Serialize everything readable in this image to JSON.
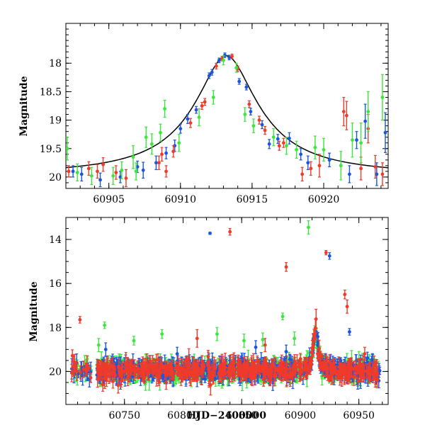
{
  "chart_data": [
    {
      "type": "scatter",
      "id": "zoom",
      "xlabel": "",
      "ylabel": "Magnitude",
      "xlim": [
        60902,
        60924.5
      ],
      "ylim": [
        20.2,
        17.3
      ],
      "xticks": [
        60905,
        60910,
        60915,
        60920
      ],
      "xtick_labels": [
        "60905",
        "60910",
        "60915",
        "60920"
      ],
      "yticks": [
        18,
        18.5,
        19,
        19.5,
        20
      ],
      "ytick_labels": [
        "18",
        "18.5",
        "19",
        "19.5",
        "20"
      ],
      "model_curve": {
        "t0": 60913.2,
        "peak_mag": 17.87,
        "base_mag": 19.97,
        "tau": 1.7
      },
      "series": [
        {
          "name": "blue",
          "color": "#1a56e0",
          "points": [
            [
              60902.5,
              19.9,
              0.1
            ],
            [
              60903.1,
              19.95,
              0.12
            ],
            [
              60904.4,
              20.05,
              0.12
            ],
            [
              60905.8,
              20.0,
              0.1
            ],
            [
              60907.0,
              19.82,
              0.1
            ],
            [
              60907.4,
              19.88,
              0.14
            ],
            [
              60908.3,
              19.75,
              0.12
            ],
            [
              60909.0,
              19.58,
              0.1
            ],
            [
              60909.6,
              19.45,
              0.1
            ],
            [
              60910.0,
              19.15,
              0.08
            ],
            [
              60910.5,
              18.98,
              0.08
            ],
            [
              60911.1,
              18.82,
              0.06
            ],
            [
              60912.0,
              18.22,
              0.05
            ],
            [
              60912.2,
              18.16,
              0.05
            ],
            [
              60912.7,
              17.95,
              0.04
            ],
            [
              60913.1,
              17.86,
              0.04
            ],
            [
              60913.4,
              17.9,
              0.04
            ],
            [
              60914.1,
              18.32,
              0.05
            ],
            [
              60914.6,
              18.42,
              0.05
            ],
            [
              60914.9,
              18.85,
              0.06
            ],
            [
              60915.7,
              19.08,
              0.07
            ],
            [
              60916.2,
              19.42,
              0.08
            ],
            [
              60916.8,
              19.33,
              0.08
            ],
            [
              60917.6,
              19.32,
              0.1
            ],
            [
              60918.4,
              19.6,
              0.1
            ],
            [
              60918.9,
              19.75,
              0.12
            ],
            [
              60920.4,
              19.7,
              0.12
            ],
            [
              60921.8,
              19.95,
              0.15
            ],
            [
              60922.3,
              19.35,
              0.15
            ],
            [
              60922.9,
              19.02,
              0.3
            ],
            [
              60923.7,
              19.95,
              0.2
            ],
            [
              60924.3,
              19.22,
              0.35
            ]
          ]
        },
        {
          "name": "red",
          "color": "#f03a2a",
          "points": [
            [
              60902.2,
              19.9,
              0.1
            ],
            [
              60903.6,
              19.85,
              0.12
            ],
            [
              60904.2,
              19.9,
              0.12
            ],
            [
              60904.6,
              19.78,
              0.12
            ],
            [
              60905.5,
              19.92,
              0.12
            ],
            [
              60906.2,
              20.02,
              0.15
            ],
            [
              60908.5,
              19.75,
              0.12
            ],
            [
              60908.7,
              19.6,
              0.12
            ],
            [
              60909.0,
              19.9,
              0.1
            ],
            [
              60909.5,
              19.55,
              0.1
            ],
            [
              60910.7,
              19.05,
              0.08
            ],
            [
              60911.5,
              18.75,
              0.06
            ],
            [
              60911.7,
              18.68,
              0.06
            ],
            [
              60912.5,
              18.05,
              0.05
            ],
            [
              60912.9,
              17.92,
              0.04
            ],
            [
              60913.6,
              17.88,
              0.04
            ],
            [
              60914.0,
              18.1,
              0.05
            ],
            [
              60914.8,
              18.72,
              0.06
            ],
            [
              60915.5,
              19.0,
              0.07
            ],
            [
              60915.9,
              19.18,
              0.07
            ],
            [
              60916.9,
              19.45,
              0.08
            ],
            [
              60917.2,
              19.4,
              0.08
            ],
            [
              60918.5,
              19.95,
              0.12
            ],
            [
              60919.1,
              19.85,
              0.12
            ],
            [
              60919.7,
              19.8,
              0.2
            ],
            [
              60921.4,
              18.85,
              0.25
            ],
            [
              60921.6,
              18.92,
              0.25
            ],
            [
              60922.6,
              19.85,
              0.2
            ],
            [
              60923.1,
              19.15,
              0.25
            ],
            [
              60923.6,
              19.82,
              0.2
            ],
            [
              60924.1,
              19.95,
              0.2
            ]
          ]
        },
        {
          "name": "green",
          "color": "#3ce63c",
          "points": [
            [
              60902.1,
              19.5,
              0.2
            ],
            [
              60902.8,
              19.92,
              0.15
            ],
            [
              60903.8,
              19.98,
              0.15
            ],
            [
              60905.3,
              19.98,
              0.15
            ],
            [
              60905.9,
              19.88,
              0.15
            ],
            [
              60906.7,
              19.65,
              0.2
            ],
            [
              60906.9,
              19.9,
              0.15
            ],
            [
              60907.6,
              19.3,
              0.18
            ],
            [
              60908.0,
              19.42,
              0.18
            ],
            [
              60908.6,
              19.22,
              0.15
            ],
            [
              60908.9,
              18.8,
              0.15
            ],
            [
              60909.9,
              19.4,
              0.15
            ],
            [
              60911.3,
              18.95,
              0.15
            ],
            [
              60912.3,
              18.6,
              0.12
            ],
            [
              60913.0,
              17.95,
              0.08
            ],
            [
              60913.9,
              18.08,
              0.08
            ],
            [
              60914.5,
              18.9,
              0.12
            ],
            [
              60915.1,
              19.1,
              0.12
            ],
            [
              60916.5,
              19.3,
              0.15
            ],
            [
              60917.4,
              19.45,
              0.15
            ],
            [
              60918.1,
              19.52,
              0.15
            ],
            [
              60919.4,
              19.48,
              0.2
            ],
            [
              60920.0,
              19.52,
              0.2
            ],
            [
              60921.2,
              19.8,
              0.25
            ],
            [
              60922.0,
              19.35,
              0.3
            ],
            [
              60922.6,
              19.4,
              0.35
            ],
            [
              60923.1,
              18.85,
              0.35
            ],
            [
              60924.1,
              18.6,
              0.4
            ]
          ]
        }
      ]
    },
    {
      "type": "scatter",
      "id": "full",
      "xlabel": "HJD−2400000",
      "ylabel": "Magnitude",
      "xlim": [
        60700,
        60975
      ],
      "ylim": [
        21.5,
        13.0
      ],
      "xticks": [
        60750,
        60800,
        60850,
        60900,
        60950
      ],
      "xtick_labels": [
        "60750",
        "60800",
        "60850",
        "60900",
        "60950"
      ],
      "yticks": [
        14,
        16,
        18,
        20
      ],
      "ytick_labels": [
        "14",
        "16",
        "18",
        "20"
      ],
      "baseline_mag": 19.95,
      "event_t0": 60913,
      "outliers": [
        {
          "name": "blue",
          "color": "#1a56e0",
          "points": [
            [
              60823,
              13.72,
              0.05
            ],
            [
              60925,
              14.75,
              0.15
            ],
            [
              60942,
              18.2,
              0.15
            ],
            [
              60734,
              19.0,
              0.3
            ],
            [
              60795,
              19.2,
              0.3
            ],
            [
              60862,
              18.9,
              0.3
            ],
            [
              60888,
              19.1,
              0.3
            ]
          ]
        },
        {
          "name": "red",
          "color": "#f03a2a",
          "points": [
            [
              60712,
              17.65,
              0.15
            ],
            [
              60840,
              13.65,
              0.15
            ],
            [
              60888,
              15.25,
              0.2
            ],
            [
              60922,
              14.6,
              0.1
            ],
            [
              60938,
              16.5,
              0.2
            ],
            [
              60940,
              17.05,
              0.3
            ],
            [
              60812,
              18.5,
              0.4
            ],
            [
              60870,
              18.8,
              0.3
            ],
            [
              60955,
              19.2,
              0.3
            ]
          ]
        },
        {
          "name": "green",
          "color": "#3ce63c",
          "points": [
            [
              60907,
              13.45,
              0.3
            ],
            [
              60733,
              17.9,
              0.15
            ],
            [
              60782,
              18.3,
              0.2
            ],
            [
              60758,
              18.6,
              0.2
            ],
            [
              60885,
              17.5,
              0.15
            ],
            [
              60829,
              18.3,
              0.3
            ],
            [
              60852,
              18.6,
              0.3
            ],
            [
              60728,
              18.8,
              0.3
            ],
            [
              60895,
              18.5,
              0.3
            ],
            [
              60868,
              18.55,
              0.3
            ]
          ]
        }
      ],
      "series_colors": {
        "blue": "#1a56e0",
        "red": "#f03a2a",
        "green": "#3ce63c"
      }
    }
  ]
}
